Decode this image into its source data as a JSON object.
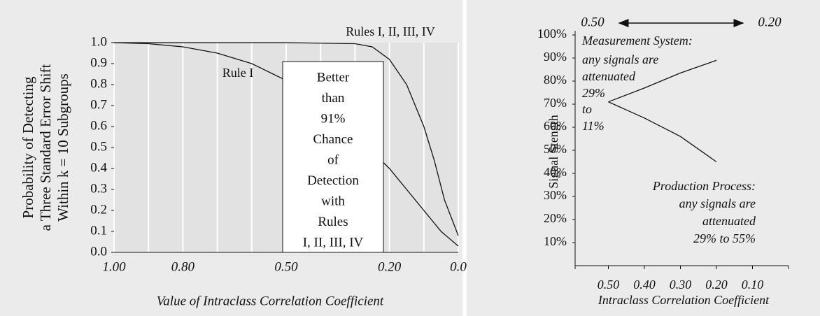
{
  "chart_data": [
    {
      "type": "line",
      "y_label": [
        "Probability of Detecting",
        "a Three Standard Error Shift",
        "Within k = 10 Subgroups"
      ],
      "x_label": "Value of Intraclass Correlation Coefficient",
      "xlim": [
        1.0,
        0.0
      ],
      "ylim": [
        0,
        1.0
      ],
      "xticks": [
        {
          "value": 1.0,
          "label": "1.00"
        },
        {
          "value": 0.8,
          "label": "0.80"
        },
        {
          "value": 0.5,
          "label": "0.50"
        },
        {
          "value": 0.2,
          "label": "0.20"
        },
        {
          "value": 0,
          "label": "0.0"
        }
      ],
      "xgrid": [
        0.9,
        0.7,
        0.6,
        0.4,
        0.3,
        0.1
      ],
      "yticks": [
        {
          "value": 0,
          "label": "0.0"
        },
        0.1,
        0.2,
        0.3,
        0.4,
        0.5,
        0.6,
        0.7,
        0.8,
        0.9,
        {
          "value": 1,
          "label": "1.0"
        }
      ],
      "series": [
        {
          "name": "Rules I, II, III, IV",
          "color": "#111111",
          "x": [
            1.0,
            0.5,
            0.3,
            0.25,
            0.2,
            0.15,
            0.1,
            0.07,
            0.04,
            0.0
          ],
          "values": [
            1.0,
            1.0,
            0.995,
            0.98,
            0.92,
            0.8,
            0.6,
            0.44,
            0.25,
            0.08
          ]
        },
        {
          "name": "Rule I",
          "color": "#111111",
          "x": [
            1.0,
            0.9,
            0.8,
            0.7,
            0.6,
            0.5,
            0.4,
            0.3,
            0.2,
            0.15,
            0.1,
            0.05,
            0.0
          ],
          "values": [
            1.0,
            0.995,
            0.98,
            0.95,
            0.9,
            0.82,
            0.7,
            0.56,
            0.4,
            0.3,
            0.2,
            0.1,
            0.03
          ]
        }
      ],
      "annotation": [
        "Better",
        "than",
        "91%",
        "Chance",
        "of",
        "Detection",
        "with",
        "Rules",
        "I, II, III, IV"
      ]
    },
    {
      "type": "line",
      "y_label": "Signal Stength",
      "x_label": "Intraclass Correlation Coefficient",
      "xlim": [
        0.6,
        0.0
      ],
      "ylim": [
        0,
        100
      ],
      "xticks": [
        {
          "value": 0.5,
          "label": "0.50"
        },
        {
          "value": 0.4,
          "label": "0.40"
        },
        {
          "value": 0.3,
          "label": "0.30"
        },
        {
          "value": 0.2,
          "label": "0.20"
        },
        {
          "value": 0.1,
          "label": "0.10"
        }
      ],
      "xminor": [
        0.6,
        0.0
      ],
      "yticks": [
        {
          "value": 10,
          "label": "10%"
        },
        {
          "value": 20,
          "label": "20%"
        },
        {
          "value": 30,
          "label": "30%"
        },
        {
          "value": 40,
          "label": "40%"
        },
        {
          "value": 50,
          "label": "50%"
        },
        {
          "value": 60,
          "label": "60%"
        },
        {
          "value": 70,
          "label": "70%"
        },
        {
          "value": 80,
          "label": "80%"
        },
        {
          "value": 90,
          "label": "90%"
        },
        {
          "value": 100,
          "label": "100%"
        }
      ],
      "series": [
        {
          "color": "#111111",
          "x": [
            0.5,
            0.4,
            0.3,
            0.2
          ],
          "values": [
            71,
            77,
            83.5,
            89
          ]
        },
        {
          "color": "#111111",
          "x": [
            0.5,
            0.4,
            0.3,
            0.2
          ],
          "values": [
            71,
            64,
            56,
            45
          ]
        }
      ],
      "top_labels": [
        "0.50",
        "0.20"
      ],
      "annotations": [
        [
          "Measurement System:",
          "any signals are",
          "attenuated",
          "29%",
          "to",
          "11%"
        ],
        [
          "Production Process:",
          "any signals are",
          "attenuated",
          "29% to 55%"
        ]
      ]
    }
  ]
}
